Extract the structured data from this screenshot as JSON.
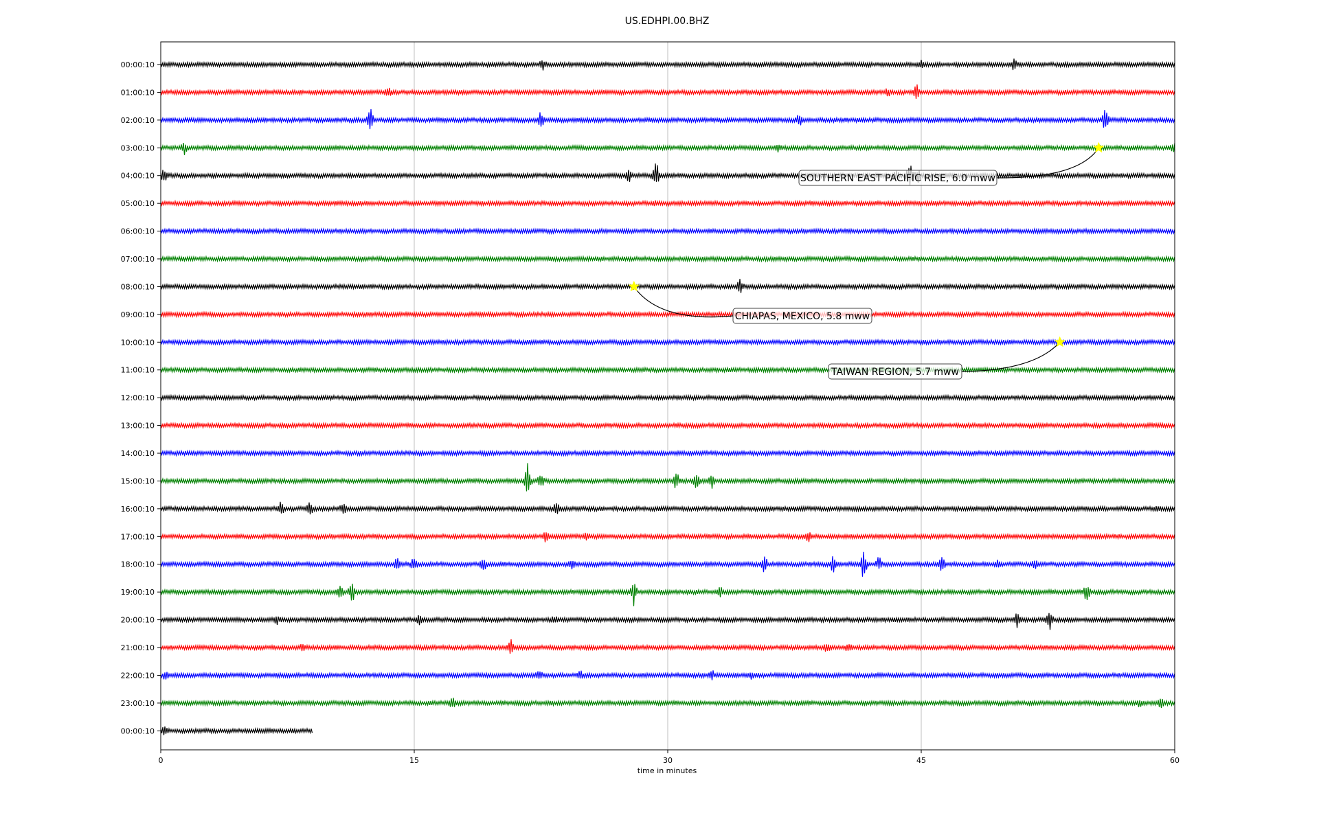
{
  "chart_data": {
    "type": "line",
    "title": "US.EDHPI.00.BHZ",
    "xlabel": "time in minutes",
    "xlim": [
      0,
      60
    ],
    "x_ticks": [
      0,
      15,
      30,
      45,
      60
    ],
    "x_tick_labels": [
      "0",
      "15",
      "30",
      "45",
      "60"
    ],
    "grid": "vertical",
    "row_labels": [
      "00:00:10",
      "01:00:10",
      "02:00:10",
      "03:00:10",
      "04:00:10",
      "05:00:10",
      "06:00:10",
      "07:00:10",
      "08:00:10",
      "09:00:10",
      "10:00:10",
      "11:00:10",
      "12:00:10",
      "13:00:10",
      "14:00:10",
      "15:00:10",
      "16:00:10",
      "17:00:10",
      "18:00:10",
      "19:00:10",
      "20:00:10",
      "21:00:10",
      "22:00:10",
      "23:00:10",
      "00:00:10"
    ],
    "row_colors": [
      "#000000",
      "#ff0000",
      "#0000ff",
      "#008000"
    ],
    "last_row_end_minute": 9,
    "events": [
      {
        "label": "SOUTHERN EAST PACIFIC RISE, 6.0 mww",
        "row": 3,
        "minute": 55.5
      },
      {
        "label": "CHIAPAS, MEXICO, 5.8 mww",
        "row": 8,
        "minute": 28.0
      },
      {
        "label": "TAIWAN REGION, 5.7 mww",
        "row": 10,
        "minute": 53.2
      }
    ],
    "bursts": [
      {
        "row": 0,
        "minute": 22.6,
        "amp": 2.2
      },
      {
        "row": 0,
        "minute": 45.0,
        "amp": 1.4
      },
      {
        "row": 0,
        "minute": 50.5,
        "amp": 2.0
      },
      {
        "row": 1,
        "minute": 13.5,
        "amp": 2.2
      },
      {
        "row": 1,
        "minute": 43.0,
        "amp": 1.3
      },
      {
        "row": 1,
        "minute": 44.7,
        "amp": 3.4
      },
      {
        "row": 2,
        "minute": 12.4,
        "amp": 5.0
      },
      {
        "row": 2,
        "minute": 22.5,
        "amp": 3.2
      },
      {
        "row": 2,
        "minute": 37.8,
        "amp": 2.4
      },
      {
        "row": 2,
        "minute": 55.9,
        "amp": 4.8
      },
      {
        "row": 3,
        "minute": 1.4,
        "amp": 3.2
      },
      {
        "row": 3,
        "minute": 36.5,
        "amp": 1.2
      },
      {
        "row": 3,
        "minute": 59.9,
        "amp": 2.0
      },
      {
        "row": 4,
        "minute": 0.2,
        "amp": 2.4
      },
      {
        "row": 4,
        "minute": 27.7,
        "amp": 2.2
      },
      {
        "row": 4,
        "minute": 29.3,
        "amp": 6.5
      },
      {
        "row": 4,
        "minute": 43.5,
        "amp": 2.2
      },
      {
        "row": 4,
        "minute": 44.3,
        "amp": 7.0
      },
      {
        "row": 4,
        "minute": 44.8,
        "amp": 3.0
      },
      {
        "row": 5,
        "minute": 29.2,
        "amp": 1.2
      },
      {
        "row": 8,
        "minute": 34.3,
        "amp": 2.8
      },
      {
        "row": 15,
        "minute": 21.7,
        "amp": 7.5
      },
      {
        "row": 15,
        "minute": 22.5,
        "amp": 3.0
      },
      {
        "row": 15,
        "minute": 30.5,
        "amp": 3.0
      },
      {
        "row": 15,
        "minute": 31.7,
        "amp": 3.2
      },
      {
        "row": 15,
        "minute": 32.6,
        "amp": 2.8
      },
      {
        "row": 16,
        "minute": 7.1,
        "amp": 2.6
      },
      {
        "row": 16,
        "minute": 8.8,
        "amp": 3.0
      },
      {
        "row": 16,
        "minute": 10.8,
        "amp": 1.8
      },
      {
        "row": 16,
        "minute": 23.4,
        "amp": 3.0
      },
      {
        "row": 16,
        "minute": 59.0,
        "amp": 1.2
      },
      {
        "row": 17,
        "minute": 22.8,
        "amp": 2.6
      },
      {
        "row": 17,
        "minute": 25.2,
        "amp": 1.3
      },
      {
        "row": 17,
        "minute": 38.3,
        "amp": 2.0
      },
      {
        "row": 18,
        "minute": 14.0,
        "amp": 2.4
      },
      {
        "row": 18,
        "minute": 15.0,
        "amp": 2.8
      },
      {
        "row": 18,
        "minute": 19.1,
        "amp": 2.8
      },
      {
        "row": 18,
        "minute": 24.3,
        "amp": 2.0
      },
      {
        "row": 18,
        "minute": 35.7,
        "amp": 3.2
      },
      {
        "row": 18,
        "minute": 39.8,
        "amp": 3.0
      },
      {
        "row": 18,
        "minute": 41.6,
        "amp": 6.0
      },
      {
        "row": 18,
        "minute": 42.5,
        "amp": 2.8
      },
      {
        "row": 18,
        "minute": 46.2,
        "amp": 2.8
      },
      {
        "row": 18,
        "minute": 49.5,
        "amp": 1.4
      },
      {
        "row": 18,
        "minute": 51.7,
        "amp": 1.8
      },
      {
        "row": 19,
        "minute": 10.6,
        "amp": 3.0
      },
      {
        "row": 19,
        "minute": 11.3,
        "amp": 4.0
      },
      {
        "row": 19,
        "minute": 28.0,
        "amp": 5.0
      },
      {
        "row": 19,
        "minute": 33.1,
        "amp": 2.0
      },
      {
        "row": 19,
        "minute": 54.8,
        "amp": 3.6
      },
      {
        "row": 20,
        "minute": 6.9,
        "amp": 1.3
      },
      {
        "row": 20,
        "minute": 15.3,
        "amp": 2.4
      },
      {
        "row": 20,
        "minute": 23.3,
        "amp": 1.2
      },
      {
        "row": 20,
        "minute": 50.7,
        "amp": 2.8
      },
      {
        "row": 20,
        "minute": 52.6,
        "amp": 4.0
      },
      {
        "row": 21,
        "minute": 8.4,
        "amp": 1.3
      },
      {
        "row": 21,
        "minute": 20.7,
        "amp": 3.0
      },
      {
        "row": 21,
        "minute": 39.4,
        "amp": 1.6
      },
      {
        "row": 21,
        "minute": 40.7,
        "amp": 1.6
      },
      {
        "row": 22,
        "minute": 0.3,
        "amp": 1.4
      },
      {
        "row": 22,
        "minute": 22.4,
        "amp": 1.6
      },
      {
        "row": 22,
        "minute": 24.8,
        "amp": 1.6
      },
      {
        "row": 22,
        "minute": 32.6,
        "amp": 1.6
      },
      {
        "row": 22,
        "minute": 34.9,
        "amp": 1.4
      },
      {
        "row": 23,
        "minute": 17.3,
        "amp": 1.8
      },
      {
        "row": 23,
        "minute": 57.9,
        "amp": 1.4
      },
      {
        "row": 23,
        "minute": 59.2,
        "amp": 1.8
      },
      {
        "row": 24,
        "minute": 0.2,
        "amp": 1.8
      }
    ]
  }
}
